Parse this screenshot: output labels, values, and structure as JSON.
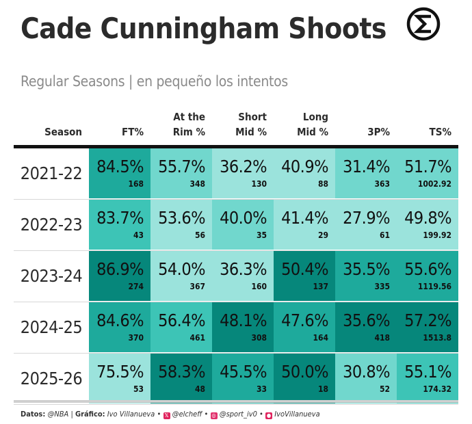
{
  "title": "Cade Cunningham Shoots",
  "subtitle": "Regular Seasons | en pequeño los intentos",
  "logo": {
    "icon": "sigma-circle-logo"
  },
  "columns": {
    "season": "Season",
    "ft": "FT%",
    "rim": "At the\nRim %",
    "short_mid": "Short\nMid %",
    "long_mid": "Long\nMid %",
    "three": "3P%",
    "ts": "TS%"
  },
  "palette": {
    "lightest": "#9be3dc",
    "light": "#71d7cd",
    "mid": "#3dc4b6",
    "darkmid": "#1eaa9c",
    "dark": "#06877b"
  },
  "rows": [
    {
      "season": "2021-22",
      "cells": [
        {
          "pct": "84.5%",
          "att": "168",
          "shade": "darkmid"
        },
        {
          "pct": "55.7%",
          "att": "348",
          "shade": "light"
        },
        {
          "pct": "36.2%",
          "att": "130",
          "shade": "lightest"
        },
        {
          "pct": "40.9%",
          "att": "88",
          "shade": "lightest"
        },
        {
          "pct": "31.4%",
          "att": "363",
          "shade": "light"
        },
        {
          "pct": "51.7%",
          "att": "1002.92",
          "shade": "light"
        }
      ]
    },
    {
      "season": "2022-23",
      "cells": [
        {
          "pct": "83.7%",
          "att": "43",
          "shade": "mid"
        },
        {
          "pct": "53.6%",
          "att": "56",
          "shade": "lightest"
        },
        {
          "pct": "40.0%",
          "att": "35",
          "shade": "light"
        },
        {
          "pct": "41.4%",
          "att": "29",
          "shade": "lightest"
        },
        {
          "pct": "27.9%",
          "att": "61",
          "shade": "lightest"
        },
        {
          "pct": "49.8%",
          "att": "199.92",
          "shade": "lightest"
        }
      ]
    },
    {
      "season": "2023-24",
      "cells": [
        {
          "pct": "86.9%",
          "att": "274",
          "shade": "dark"
        },
        {
          "pct": "54.0%",
          "att": "367",
          "shade": "lightest"
        },
        {
          "pct": "36.3%",
          "att": "160",
          "shade": "lightest"
        },
        {
          "pct": "50.4%",
          "att": "137",
          "shade": "dark"
        },
        {
          "pct": "35.5%",
          "att": "335",
          "shade": "darkmid"
        },
        {
          "pct": "55.6%",
          "att": "1119.56",
          "shade": "darkmid"
        }
      ]
    },
    {
      "season": "2024-25",
      "cells": [
        {
          "pct": "84.6%",
          "att": "370",
          "shade": "darkmid"
        },
        {
          "pct": "56.4%",
          "att": "461",
          "shade": "mid"
        },
        {
          "pct": "48.1%",
          "att": "308",
          "shade": "dark"
        },
        {
          "pct": "47.6%",
          "att": "164",
          "shade": "darkmid"
        },
        {
          "pct": "35.6%",
          "att": "418",
          "shade": "dark"
        },
        {
          "pct": "57.2%",
          "att": "1513.8",
          "shade": "dark"
        }
      ]
    },
    {
      "season": "2025-26",
      "cells": [
        {
          "pct": "75.5%",
          "att": "53",
          "shade": "lightest"
        },
        {
          "pct": "58.3%",
          "att": "48",
          "shade": "dark"
        },
        {
          "pct": "45.5%",
          "att": "33",
          "shade": "darkmid"
        },
        {
          "pct": "50.0%",
          "att": "18",
          "shade": "dark"
        },
        {
          "pct": "30.8%",
          "att": "52",
          "shade": "light"
        },
        {
          "pct": "55.1%",
          "att": "174.32",
          "shade": "mid"
        }
      ]
    }
  ],
  "footer": {
    "datos_label": "Datos:",
    "datos_value": "@NBA",
    "sep1": "|",
    "grafico_label": "Gráfico:",
    "grafico_value": "Ivo Villanueva",
    "x_handle": "@elcheff",
    "ig_handle": "@sport_iv0",
    "gh_handle": "IvoVillanueva",
    "x_color": "#e0245e",
    "ig_color": "#e1306c",
    "gh_color": "#e0245e"
  }
}
